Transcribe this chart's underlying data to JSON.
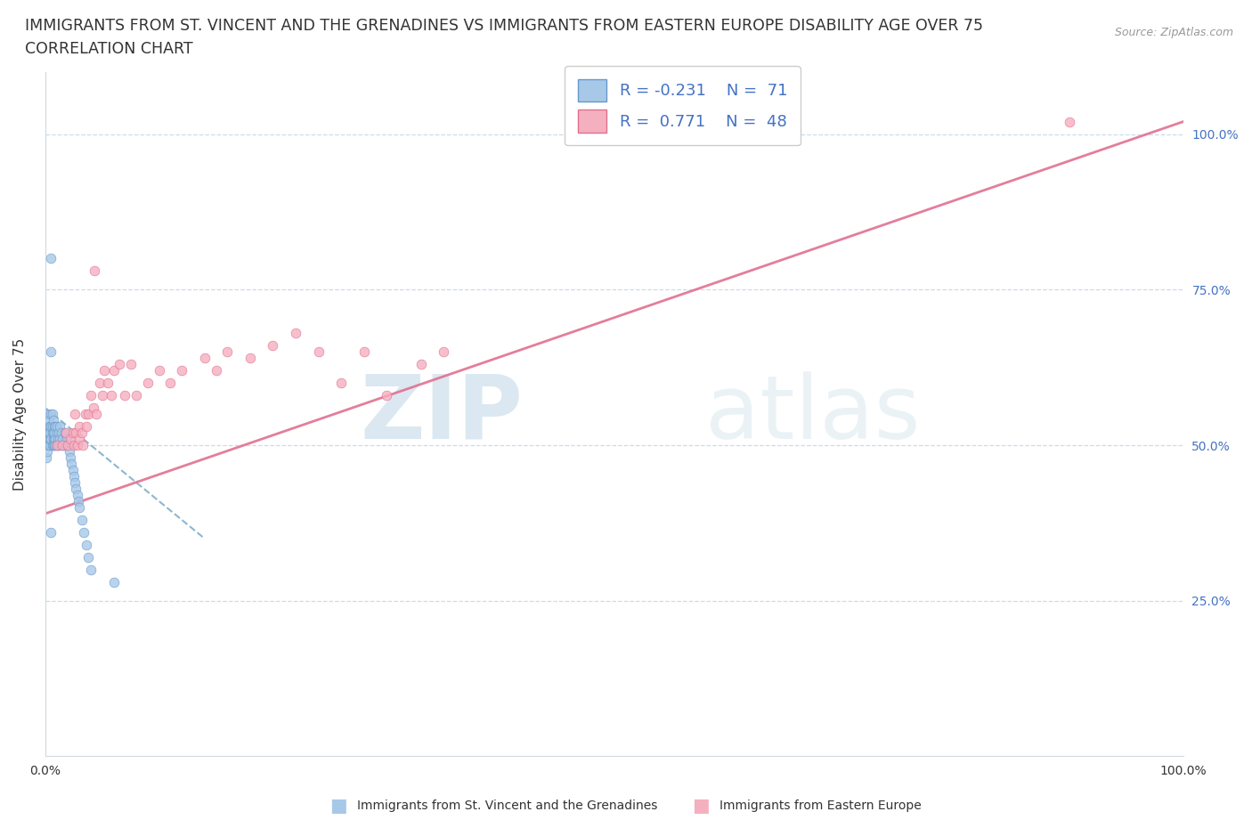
{
  "title_line1": "IMMIGRANTS FROM ST. VINCENT AND THE GRENADINES VS IMMIGRANTS FROM EASTERN EUROPE DISABILITY AGE OVER 75",
  "title_line2": "CORRELATION CHART",
  "source_text": "Source: ZipAtlas.com",
  "ylabel": "Disability Age Over 75",
  "xmin": 0.0,
  "xmax": 1.0,
  "ymin": 0.0,
  "ymax": 1.1,
  "y_tick_positions": [
    0.25,
    0.5,
    0.75,
    1.0
  ],
  "y_tick_labels": [
    "25.0%",
    "50.0%",
    "75.0%",
    "100.0%"
  ],
  "x_tick_positions": [
    0.0,
    1.0
  ],
  "x_tick_labels": [
    "0.0%",
    "100.0%"
  ],
  "watermark_zip": "ZIP",
  "watermark_atlas": "atlas",
  "blue_color": "#a8c8e8",
  "blue_edge_color": "#6699cc",
  "pink_color": "#f5b0c0",
  "pink_edge_color": "#e07090",
  "blue_trend_color": "#7aaac8",
  "pink_trend_color": "#e07090",
  "background_color": "#ffffff",
  "grid_color": "#c8d8e8",
  "right_tick_color": "#4472c4",
  "title_fontsize": 12.5,
  "axis_label_fontsize": 11,
  "tick_fontsize": 10,
  "legend_fontsize": 13,
  "blue_R": "-0.231",
  "blue_N": "71",
  "pink_R": "0.771",
  "pink_N": "48",
  "blue_scatter_x": [
    0.001,
    0.001,
    0.001,
    0.001,
    0.001,
    0.002,
    0.002,
    0.002,
    0.002,
    0.003,
    0.003,
    0.003,
    0.003,
    0.004,
    0.004,
    0.004,
    0.004,
    0.005,
    0.005,
    0.005,
    0.005,
    0.005,
    0.006,
    0.006,
    0.006,
    0.006,
    0.007,
    0.007,
    0.007,
    0.007,
    0.008,
    0.008,
    0.008,
    0.008,
    0.009,
    0.009,
    0.009,
    0.01,
    0.01,
    0.01,
    0.011,
    0.011,
    0.012,
    0.012,
    0.013,
    0.013,
    0.014,
    0.014,
    0.015,
    0.016,
    0.017,
    0.018,
    0.019,
    0.02,
    0.021,
    0.022,
    0.023,
    0.024,
    0.025,
    0.026,
    0.027,
    0.028,
    0.029,
    0.03,
    0.032,
    0.034,
    0.036,
    0.038,
    0.04,
    0.005,
    0.06
  ],
  "blue_scatter_y": [
    0.55,
    0.52,
    0.5,
    0.48,
    0.51,
    0.53,
    0.5,
    0.52,
    0.49,
    0.54,
    0.51,
    0.5,
    0.52,
    0.53,
    0.5,
    0.51,
    0.52,
    0.8,
    0.65,
    0.55,
    0.53,
    0.51,
    0.55,
    0.52,
    0.5,
    0.53,
    0.54,
    0.51,
    0.52,
    0.5,
    0.53,
    0.51,
    0.5,
    0.52,
    0.53,
    0.51,
    0.5,
    0.52,
    0.5,
    0.53,
    0.51,
    0.5,
    0.52,
    0.5,
    0.51,
    0.53,
    0.5,
    0.52,
    0.51,
    0.5,
    0.52,
    0.5,
    0.51,
    0.5,
    0.49,
    0.48,
    0.47,
    0.46,
    0.45,
    0.44,
    0.43,
    0.42,
    0.41,
    0.4,
    0.38,
    0.36,
    0.34,
    0.32,
    0.3,
    0.36,
    0.28
  ],
  "pink_scatter_x": [
    0.01,
    0.015,
    0.018,
    0.02,
    0.022,
    0.024,
    0.025,
    0.026,
    0.027,
    0.028,
    0.03,
    0.03,
    0.032,
    0.033,
    0.035,
    0.036,
    0.038,
    0.04,
    0.042,
    0.043,
    0.045,
    0.048,
    0.05,
    0.052,
    0.055,
    0.058,
    0.06,
    0.065,
    0.07,
    0.075,
    0.08,
    0.09,
    0.1,
    0.11,
    0.12,
    0.14,
    0.15,
    0.16,
    0.18,
    0.2,
    0.22,
    0.24,
    0.26,
    0.28,
    0.3,
    0.33,
    0.35,
    0.9
  ],
  "pink_scatter_y": [
    0.5,
    0.5,
    0.52,
    0.5,
    0.51,
    0.52,
    0.5,
    0.55,
    0.52,
    0.5,
    0.53,
    0.51,
    0.52,
    0.5,
    0.55,
    0.53,
    0.55,
    0.58,
    0.56,
    0.78,
    0.55,
    0.6,
    0.58,
    0.62,
    0.6,
    0.58,
    0.62,
    0.63,
    0.58,
    0.63,
    0.58,
    0.6,
    0.62,
    0.6,
    0.62,
    0.64,
    0.62,
    0.65,
    0.64,
    0.66,
    0.68,
    0.65,
    0.6,
    0.65,
    0.58,
    0.63,
    0.65,
    1.02
  ],
  "blue_trend_x": [
    0.0,
    0.14
  ],
  "blue_trend_y": [
    0.56,
    0.35
  ],
  "pink_trend_x": [
    0.0,
    1.0
  ],
  "pink_trend_y": [
    0.39,
    1.02
  ]
}
